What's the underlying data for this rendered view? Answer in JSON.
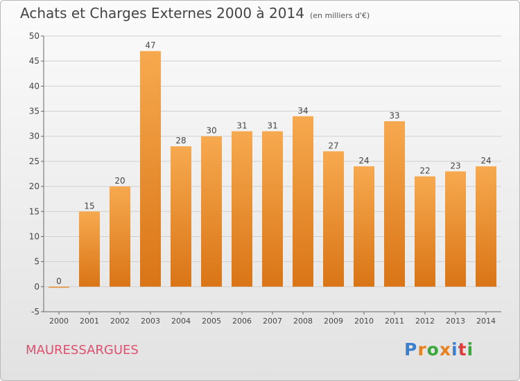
{
  "header": {
    "title": "Achats et Charges Externes 2000 à 2014",
    "subtitle": "(en milliers d'€)"
  },
  "place_name": "MAURESSARGUES",
  "brand": {
    "letters": [
      "P",
      "r",
      "o",
      "x",
      "i",
      "t",
      "i"
    ],
    "letter_colors": [
      "#3a7fd0",
      "#e8801e",
      "#3aa83a",
      "#e8801e",
      "#3a7fd0",
      "#e03a3a",
      "#3aa83a"
    ]
  },
  "colors": {
    "bar_top": "#f7a94f",
    "bar_bottom": "#d97516",
    "grid": "#cfcfcf",
    "axis_text": "#444444",
    "place": "#e0506e"
  },
  "chart_data": {
    "type": "bar",
    "categories": [
      "2000",
      "2001",
      "2002",
      "2003",
      "2004",
      "2005",
      "2006",
      "2007",
      "2008",
      "2009",
      "2010",
      "2011",
      "2012",
      "2013",
      "2014"
    ],
    "values": [
      0,
      15,
      20,
      47,
      28,
      30,
      31,
      31,
      34,
      27,
      24,
      33,
      22,
      23,
      24
    ],
    "data_labels": [
      "0",
      "15",
      "20",
      "47",
      "28",
      "30",
      "31",
      "31",
      "34",
      "27",
      "24",
      "33",
      "22",
      "23",
      "24"
    ],
    "title": "Achats et Charges Externes 2000 à 2014",
    "subtitle": "(en milliers d'€)",
    "ylim": [
      -5,
      50
    ],
    "yticks": [
      -5,
      0,
      5,
      10,
      15,
      20,
      25,
      30,
      35,
      40,
      45,
      50
    ],
    "ytick_labels": [
      "-5",
      "0",
      "5",
      "10",
      "15",
      "20",
      "25",
      "30",
      "35",
      "40",
      "45",
      "50"
    ],
    "grid": true,
    "legend": "none"
  }
}
